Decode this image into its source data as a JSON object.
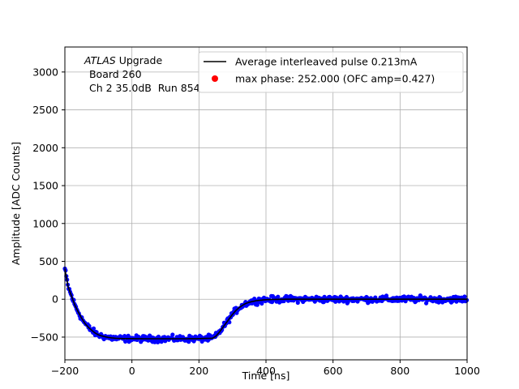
{
  "chart_data": {
    "type": "scatter",
    "title": "",
    "xlabel": "Time [ns]",
    "ylabel": "Amplitude [ADC Counts]",
    "xlim": [
      -200,
      1000
    ],
    "ylim": [
      -800,
      3330
    ],
    "xticks": [
      -200,
      0,
      200,
      400,
      600,
      800,
      1000
    ],
    "yticks": [
      -500,
      0,
      500,
      1000,
      1500,
      2000,
      2500,
      3000
    ],
    "grid": true,
    "legend_position": "top-right",
    "annotation": {
      "line1_italic": "ATLAS",
      "line1_rest": " Upgrade",
      "line2": " Board 260",
      "line3": " Ch 2 35.0dB  Run 854"
    },
    "series": [
      {
        "name": "Average interleaved pulse 0.213mA",
        "kind": "line",
        "color": "#000000",
        "x": [
          -200,
          -190,
          -180,
          -170,
          -160,
          -150,
          -140,
          -130,
          -120,
          -110,
          -100,
          -90,
          -80,
          -70,
          -60,
          -50,
          -40,
          -20,
          0,
          50,
          100,
          150,
          200,
          240,
          250,
          260,
          270,
          280,
          290,
          300,
          310,
          320,
          330,
          340,
          350,
          360,
          370,
          380,
          390,
          400,
          420,
          440,
          460,
          480,
          500,
          550,
          600,
          700,
          800,
          900,
          1000
        ],
        "y": [
          400,
          160,
          40,
          -80,
          -170,
          -250,
          -320,
          -370,
          -410,
          -445,
          -470,
          -485,
          -495,
          -505,
          -510,
          -515,
          -518,
          -520,
          -520,
          -522,
          -522,
          -522,
          -520,
          -515,
          -490,
          -440,
          -380,
          -320,
          -260,
          -200,
          -150,
          -110,
          -80,
          -55,
          -40,
          -30,
          -20,
          -15,
          -10,
          -6,
          -3,
          -1,
          0,
          0,
          0,
          0,
          0,
          0,
          0,
          0,
          0
        ]
      },
      {
        "name": "",
        "kind": "scatter",
        "color": "#0000ff",
        "description_noise_amplitude": 40
      },
      {
        "name": "max phase: 252.000 (OFC amp=0.427)",
        "kind": "marker",
        "color": "#ff0000"
      }
    ]
  }
}
